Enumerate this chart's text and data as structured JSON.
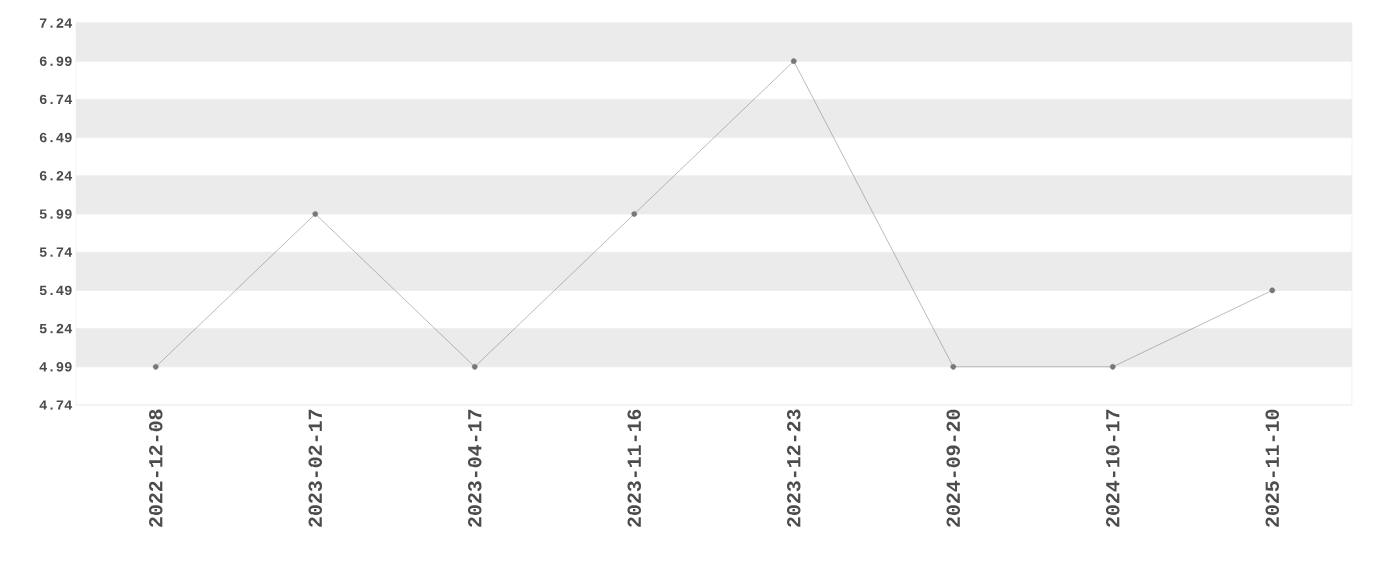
{
  "chart_data": {
    "type": "line",
    "categories": [
      "2022-12-08",
      "2023-02-17",
      "2023-04-17",
      "2023-11-16",
      "2023-12-23",
      "2024-09-20",
      "2024-10-17",
      "2025-11-10"
    ],
    "values": [
      4.99,
      5.99,
      4.99,
      5.99,
      6.99,
      4.99,
      4.99,
      5.49
    ],
    "color": "#777777",
    "marker": "circle",
    "ylim": [
      4.74,
      7.24
    ],
    "yticks": [
      4.74,
      4.99,
      5.24,
      5.49,
      5.74,
      5.99,
      6.24,
      6.49,
      6.74,
      6.99,
      7.24
    ],
    "grid": "y"
  }
}
